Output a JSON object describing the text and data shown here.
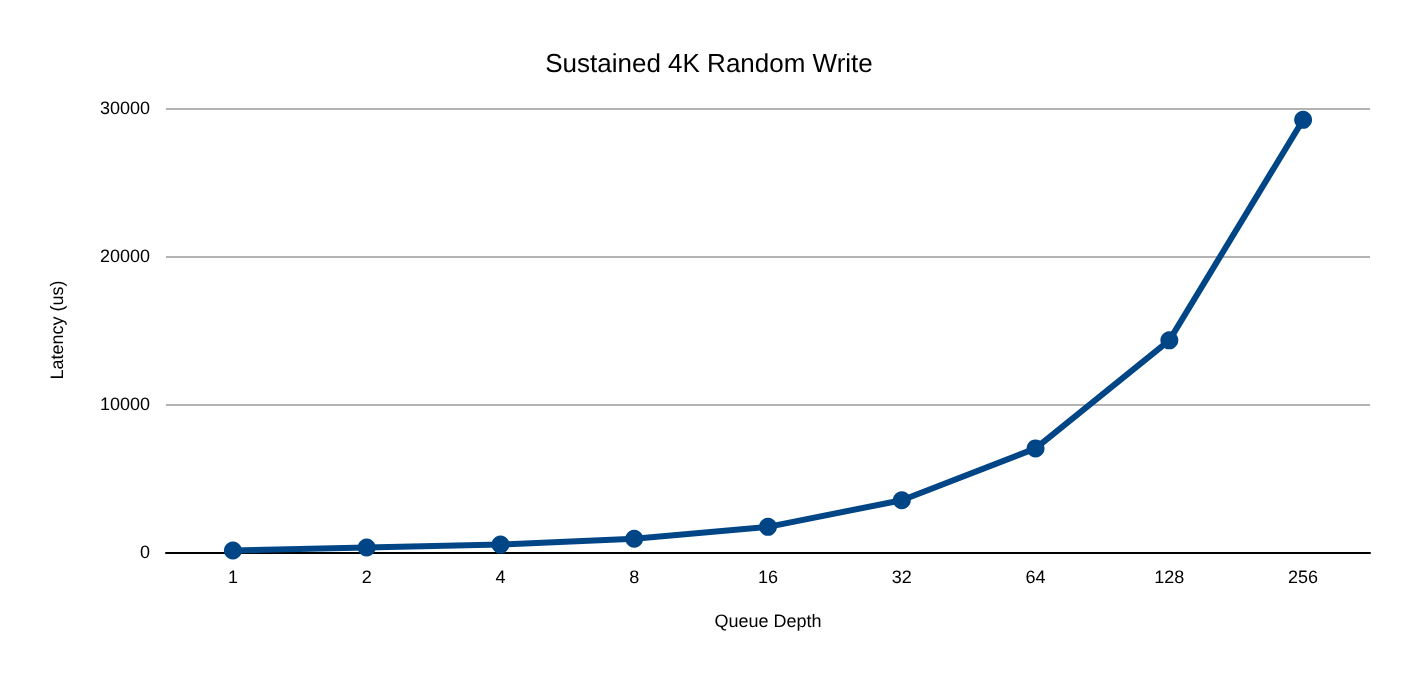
{
  "chart_data": {
    "type": "line",
    "title": "Sustained 4K Random Write",
    "xlabel": "Queue Depth",
    "ylabel": "Latency (us)",
    "categories": [
      "1",
      "2",
      "4",
      "8",
      "16",
      "32",
      "64",
      "128",
      "256"
    ],
    "series": [
      {
        "color": "#004586",
        "values": [
          100,
          300,
          500,
          900,
          1700,
          3500,
          7000,
          14300,
          29200
        ]
      }
    ],
    "ylim": [
      0,
      30000
    ],
    "yticks": [
      0,
      10000,
      20000,
      30000
    ],
    "grid": "y",
    "marker": "circle",
    "line_style": "solid"
  }
}
